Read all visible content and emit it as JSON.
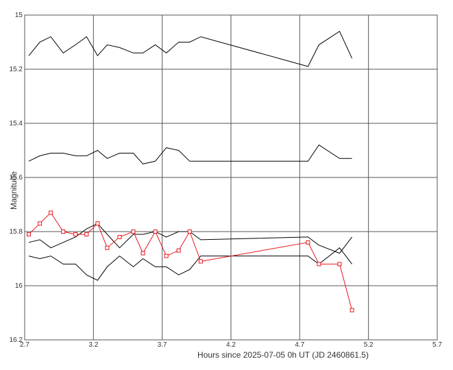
{
  "chart_data": {
    "type": "line",
    "xlabel": "Hours since 2025-07-05 0h UT (JD 2460861.5)",
    "ylabel": "Magnitude",
    "xlim": [
      2.7,
      5.7
    ],
    "ylim": [
      16.2,
      15.0
    ],
    "y_inverted": true,
    "grid": true,
    "x_ticks": [
      "2.7",
      "3.2",
      "3.7",
      "4.2",
      "4.7",
      "5.2",
      "5.7"
    ],
    "y_ticks": [
      "15",
      "15.2",
      "15.4",
      "15.6",
      "15.8",
      "16",
      "16.2"
    ],
    "series": [
      {
        "color": "#000000",
        "marker": "none",
        "points": [
          [
            2.73,
            15.15
          ],
          [
            2.81,
            15.1
          ],
          [
            2.89,
            15.08
          ],
          [
            2.98,
            15.14
          ],
          [
            3.07,
            15.11
          ],
          [
            3.15,
            15.08
          ],
          [
            3.23,
            15.15
          ],
          [
            3.3,
            15.11
          ],
          [
            3.39,
            15.12
          ],
          [
            3.49,
            15.14
          ],
          [
            3.56,
            15.14
          ],
          [
            3.65,
            15.11
          ],
          [
            3.73,
            15.14
          ],
          [
            3.82,
            15.1
          ],
          [
            3.9,
            15.1
          ],
          [
            3.98,
            15.08
          ],
          [
            4.76,
            15.19
          ],
          [
            4.84,
            15.11
          ],
          [
            4.99,
            15.06
          ],
          [
            5.08,
            15.16
          ]
        ]
      },
      {
        "color": "#000000",
        "marker": "none",
        "points": [
          [
            2.73,
            15.54
          ],
          [
            2.81,
            15.52
          ],
          [
            2.89,
            15.51
          ],
          [
            2.98,
            15.51
          ],
          [
            3.07,
            15.52
          ],
          [
            3.15,
            15.52
          ],
          [
            3.23,
            15.5
          ],
          [
            3.3,
            15.53
          ],
          [
            3.39,
            15.51
          ],
          [
            3.49,
            15.51
          ],
          [
            3.56,
            15.55
          ],
          [
            3.65,
            15.54
          ],
          [
            3.73,
            15.49
          ],
          [
            3.82,
            15.5
          ],
          [
            3.9,
            15.54
          ],
          [
            3.98,
            15.54
          ],
          [
            4.76,
            15.54
          ],
          [
            4.84,
            15.48
          ],
          [
            4.99,
            15.53
          ],
          [
            5.08,
            15.53
          ]
        ]
      },
      {
        "color": "#000000",
        "marker": "none",
        "points": [
          [
            2.73,
            15.84
          ],
          [
            2.81,
            15.83
          ],
          [
            2.89,
            15.86
          ],
          [
            2.98,
            15.84
          ],
          [
            3.07,
            15.82
          ],
          [
            3.15,
            15.79
          ],
          [
            3.23,
            15.77
          ],
          [
            3.3,
            15.81
          ],
          [
            3.39,
            15.86
          ],
          [
            3.49,
            15.81
          ],
          [
            3.56,
            15.81
          ],
          [
            3.65,
            15.8
          ],
          [
            3.73,
            15.82
          ],
          [
            3.82,
            15.8
          ],
          [
            3.9,
            15.8
          ],
          [
            3.98,
            15.83
          ],
          [
            4.76,
            15.82
          ],
          [
            4.84,
            15.85
          ],
          [
            4.99,
            15.88
          ],
          [
            5.08,
            15.82
          ]
        ]
      },
      {
        "color": "#000000",
        "marker": "none",
        "points": [
          [
            2.73,
            15.89
          ],
          [
            2.81,
            15.9
          ],
          [
            2.89,
            15.89
          ],
          [
            2.98,
            15.92
          ],
          [
            3.07,
            15.92
          ],
          [
            3.15,
            15.96
          ],
          [
            3.23,
            15.98
          ],
          [
            3.3,
            15.93
          ],
          [
            3.39,
            15.89
          ],
          [
            3.49,
            15.93
          ],
          [
            3.56,
            15.9
          ],
          [
            3.65,
            15.93
          ],
          [
            3.73,
            15.93
          ],
          [
            3.82,
            15.96
          ],
          [
            3.9,
            15.94
          ],
          [
            3.98,
            15.89
          ],
          [
            4.76,
            15.89
          ],
          [
            4.84,
            15.92
          ],
          [
            4.99,
            15.86
          ],
          [
            5.08,
            15.92
          ]
        ]
      },
      {
        "color": "#e8141b",
        "marker": "square",
        "points": [
          [
            2.73,
            15.81
          ],
          [
            2.81,
            15.77
          ],
          [
            2.89,
            15.73
          ],
          [
            2.98,
            15.8
          ],
          [
            3.07,
            15.81
          ],
          [
            3.15,
            15.81
          ],
          [
            3.23,
            15.77
          ],
          [
            3.3,
            15.86
          ],
          [
            3.39,
            15.82
          ],
          [
            3.49,
            15.8
          ],
          [
            3.56,
            15.88
          ],
          [
            3.65,
            15.8
          ],
          [
            3.73,
            15.89
          ],
          [
            3.82,
            15.87
          ],
          [
            3.9,
            15.8
          ],
          [
            3.98,
            15.91
          ],
          [
            4.76,
            15.84
          ],
          [
            4.84,
            15.92
          ],
          [
            4.99,
            15.92
          ],
          [
            5.08,
            16.09
          ]
        ]
      }
    ]
  }
}
